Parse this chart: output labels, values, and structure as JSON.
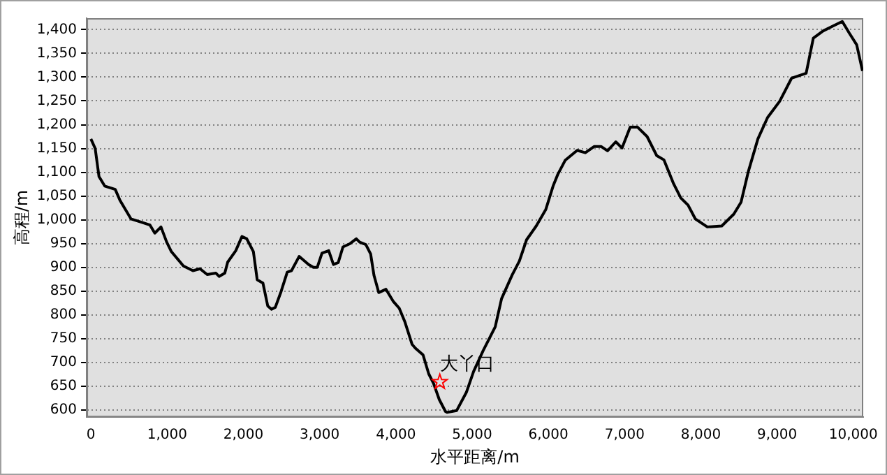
{
  "chart_data": {
    "type": "line",
    "xlabel": "水平距离/m",
    "ylabel": "高程/m",
    "xlim": [
      -56,
      10130
    ],
    "ylim": [
      585,
      1424
    ],
    "xticks": [
      0,
      {
        "value": 1000,
        "label": "1,000"
      },
      {
        "value": 2000,
        "label": "2,000"
      },
      {
        "value": 3000,
        "label": "3,000"
      },
      {
        "value": 4000,
        "label": "4,000"
      },
      {
        "value": 5000,
        "label": "5,000"
      },
      {
        "value": 6000,
        "label": "6,000"
      },
      {
        "value": 7000,
        "label": "7,000"
      },
      {
        "value": 8000,
        "label": "8,000"
      },
      {
        "value": 9000,
        "label": "9,000"
      },
      {
        "value": 10000,
        "label": "10,000"
      }
    ],
    "yticks": [
      600,
      650,
      700,
      750,
      800,
      850,
      900,
      950,
      {
        "value": 1000,
        "label": "1,000"
      },
      {
        "value": 1050,
        "label": "1,050"
      },
      {
        "value": 1100,
        "label": "1,100"
      },
      {
        "value": 1150,
        "label": "1,150"
      },
      {
        "value": 1200,
        "label": "1,200"
      },
      {
        "value": 1250,
        "label": "1,250"
      },
      {
        "value": 1300,
        "label": "1,300"
      },
      {
        "value": 1350,
        "label": "1,350"
      },
      {
        "value": 1400,
        "label": "1,400"
      }
    ],
    "grid": "y",
    "legend": false,
    "marker": "none",
    "line_style": "solid",
    "series": [
      {
        "color": "#000000",
        "x": [
          0,
          56,
          106,
          181,
          319,
          381,
          525,
          663,
          775,
          838,
          919,
          994,
          1056,
          1213,
          1338,
          1431,
          1525,
          1638,
          1681,
          1756,
          1794,
          1900,
          1981,
          2044,
          2131,
          2181,
          2256,
          2319,
          2369,
          2419,
          2494,
          2575,
          2631,
          2731,
          2856,
          2919,
          2969,
          3031,
          3119,
          3181,
          3244,
          3306,
          3400,
          3481,
          3525,
          3606,
          3669,
          3713,
          3775,
          3869,
          3963,
          4044,
          4119,
          4213,
          4256,
          4356,
          4431,
          4494,
          4569,
          4650,
          4671,
          4798,
          4924,
          5019,
          5145,
          5303,
          5386,
          5525,
          5619,
          5714,
          5841,
          5967,
          6062,
          6125,
          6220,
          6378,
          6485,
          6599,
          6694,
          6776,
          6884,
          6966,
          7073,
          7168,
          7295,
          7421,
          7516,
          7642,
          7737,
          7832,
          7927,
          8085,
          8274,
          8432,
          8527,
          8622,
          8748,
          8875,
          9033,
          9191,
          9381,
          9475,
          9602,
          9728,
          9855,
          9949,
          10044,
          10120
        ],
        "values": [
          1170,
          1150,
          1091,
          1071,
          1064,
          1041,
          1002,
          995,
          989,
          972,
          985,
          953,
          933,
          903,
          893,
          897,
          885,
          888,
          881,
          888,
          911,
          935,
          965,
          960,
          933,
          874,
          867,
          819,
          812,
          816,
          849,
          890,
          893,
          923,
          906,
          900,
          900,
          930,
          935,
          906,
          910,
          943,
          950,
          960,
          953,
          948,
          928,
          883,
          847,
          854,
          829,
          814,
          785,
          738,
          730,
          716,
          676,
          656,
          622,
          597,
          595,
          599,
          637,
          681,
          725,
          775,
          834,
          884,
          913,
          958,
          987,
          1022,
          1071,
          1096,
          1125,
          1146,
          1141,
          1154,
          1154,
          1145,
          1164,
          1151,
          1195,
          1195,
          1175,
          1135,
          1126,
          1076,
          1046,
          1031,
          1002,
          985,
          987,
          1012,
          1037,
          1101,
          1170,
          1215,
          1249,
          1298,
          1308,
          1382,
          1397,
          1407,
          1417,
          1392,
          1368,
          1313
        ]
      },
      {
        "type": "scatter",
        "color": "#ff0000",
        "marker": "star",
        "x": [
          4576
        ],
        "values": [
          659
        ]
      }
    ],
    "annotations": [
      {
        "text": "大丫口",
        "x": 4576,
        "y": 659
      }
    ]
  }
}
